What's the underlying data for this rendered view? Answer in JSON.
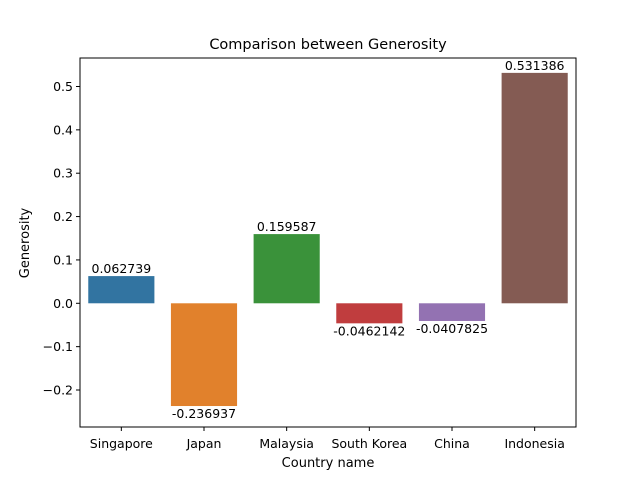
{
  "chart_data": {
    "type": "bar",
    "title": "Comparison between Generosity",
    "xlabel": "Country name",
    "ylabel": "Generosity",
    "categories": [
      "Singapore",
      "Japan",
      "Malaysia",
      "South Korea",
      "China",
      "Indonesia"
    ],
    "values": [
      0.062739,
      -0.236937,
      0.159587,
      -0.0462142,
      -0.0407825,
      0.531386
    ],
    "data_labels": [
      "0.062739",
      "-0.236937",
      "0.159587",
      "-0.0462142",
      "-0.0407825",
      "0.531386"
    ],
    "colors": [
      "#3274a1",
      "#e1812c",
      "#3a923a",
      "#c03d3e",
      "#9372b2",
      "#845b53"
    ],
    "ylim": [
      -0.2853,
      0.5657
    ],
    "yticks": [
      -0.2,
      -0.1,
      0.0,
      0.1,
      0.2,
      0.3,
      0.4,
      0.5
    ],
    "ytick_labels": [
      "−0.2",
      "−0.1",
      "0.0",
      "0.1",
      "0.2",
      "0.3",
      "0.4",
      "0.5"
    ],
    "grid": false,
    "legend": "none"
  }
}
